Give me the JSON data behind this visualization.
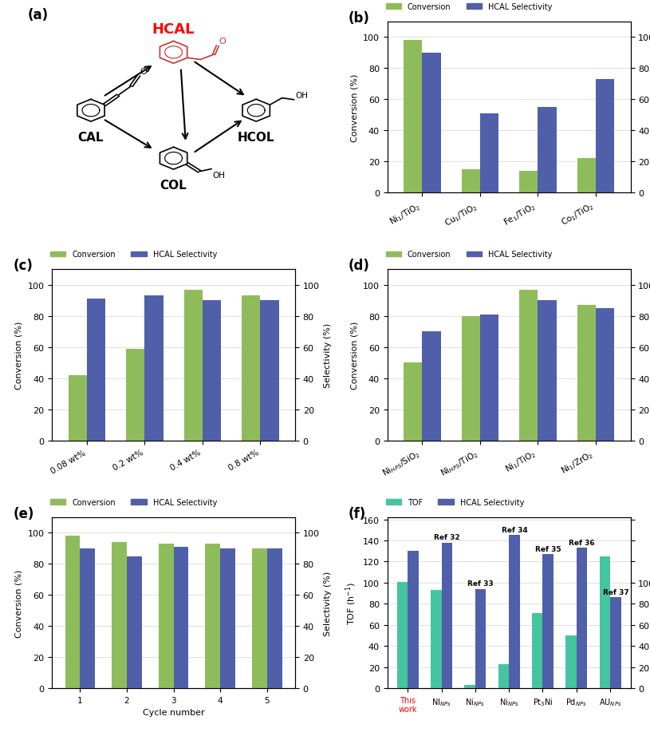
{
  "b_conversion": [
    98,
    15,
    14,
    22
  ],
  "b_selectivity": [
    90,
    51,
    55,
    73
  ],
  "b_labels": [
    "Ni$_1$/TiO$_2$",
    "Cu$_1$/TiO$_2$",
    "Fe$_1$/TiO$_2$",
    "Co$_1$/TiO$_2$"
  ],
  "c_conversion": [
    42,
    59,
    97,
    93
  ],
  "c_selectivity": [
    91,
    93,
    90,
    90
  ],
  "c_labels": [
    "0.08 wt%",
    "0.2 wt%",
    "0.4 wt%",
    "0.8 wt%"
  ],
  "d_conversion": [
    50,
    80,
    97,
    87
  ],
  "d_selectivity": [
    70,
    81,
    90,
    85
  ],
  "d_labels": [
    "Ni$_{HPS}$/SiO$_2$",
    "Ni$_{HPS}$/TiO$_2$",
    "Ni$_1$/TiO$_2$",
    "Ni$_1$/ZrO$_2$"
  ],
  "e_conversion": [
    98,
    94,
    93,
    93,
    90
  ],
  "e_selectivity": [
    90,
    85,
    91,
    90,
    90
  ],
  "e_labels": [
    "1",
    "2",
    "3",
    "4",
    "5"
  ],
  "f_tof_data": [
    101,
    93,
    3,
    23,
    71,
    50,
    125
  ],
  "f_sel_data": [
    130,
    138,
    94,
    145,
    127,
    133,
    86
  ],
  "f_labels": [
    "This\nwork",
    "NI$_{NPs}$",
    "Ni$_{NPs}$",
    "Ni$_{NPs}$",
    "Pt$_3$Ni",
    "Pd$_{NPs}$",
    "AU$_{NPs}$"
  ],
  "f_ref": [
    "",
    "Ref 32",
    "Ref 33",
    "Ref 34",
    "Ref 35",
    "Ref 36",
    "Ref 37"
  ],
  "green_color": "#8fbc5a",
  "blue_color": "#4f5faa",
  "teal_color": "#45c4a0",
  "bar_width": 0.32,
  "ylim_pct": [
    0,
    110
  ],
  "ylim_sel": [
    0,
    110
  ]
}
